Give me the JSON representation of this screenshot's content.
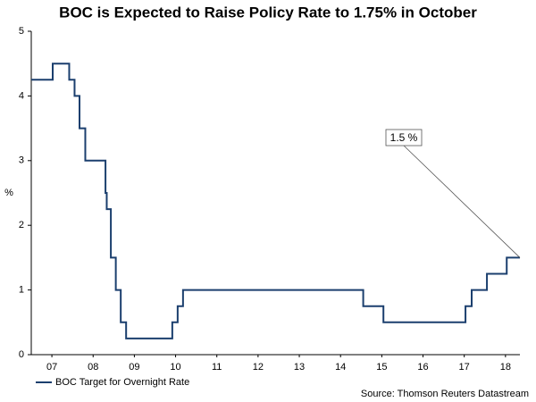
{
  "chart_data": {
    "type": "line",
    "title": "BOC is Expected to Raise Policy Rate to 1.75% in October",
    "y_label": "%",
    "source": "Source: Thomson Reuters Datastream",
    "annotation": "1.5 %",
    "x": [
      2007.0,
      2007.52,
      2007.52,
      2007.92,
      2007.92,
      2008.05,
      2008.05,
      2008.17,
      2008.17,
      2008.31,
      2008.31,
      2008.8,
      2008.8,
      2008.83,
      2008.83,
      2008.93,
      2008.93,
      2009.05,
      2009.05,
      2009.17,
      2009.17,
      2009.3,
      2009.3,
      2010.42,
      2010.42,
      2010.55,
      2010.55,
      2010.68,
      2010.68,
      2015.05,
      2015.05,
      2015.54,
      2015.54,
      2017.53,
      2017.53,
      2017.68,
      2017.68,
      2018.05,
      2018.05,
      2018.53,
      2018.53,
      2018.85
    ],
    "series": [
      {
        "name": "BOC Target for Overnight Rate",
        "color": "#1b3f6e",
        "values": [
          4.25,
          4.25,
          4.5,
          4.5,
          4.25,
          4.25,
          4.0,
          4.0,
          3.5,
          3.5,
          3.0,
          3.0,
          2.5,
          2.5,
          2.25,
          2.25,
          1.5,
          1.5,
          1.0,
          1.0,
          0.5,
          0.5,
          0.25,
          0.25,
          0.5,
          0.5,
          0.75,
          0.75,
          1.0,
          1.0,
          0.75,
          0.75,
          0.5,
          0.5,
          0.75,
          0.75,
          1.0,
          1.0,
          1.25,
          1.25,
          1.5,
          1.5
        ]
      }
    ],
    "xlim": [
      2007.0,
      2018.85
    ],
    "xticks": [
      {
        "value": 2007.5,
        "label": "07"
      },
      {
        "value": 2008.5,
        "label": "08"
      },
      {
        "value": 2009.5,
        "label": "09"
      },
      {
        "value": 2010.5,
        "label": "10"
      },
      {
        "value": 2011.5,
        "label": "11"
      },
      {
        "value": 2012.5,
        "label": "12"
      },
      {
        "value": 2013.5,
        "label": "13"
      },
      {
        "value": 2014.5,
        "label": "14"
      },
      {
        "value": 2015.5,
        "label": "15"
      },
      {
        "value": 2016.5,
        "label": "16"
      },
      {
        "value": 2017.5,
        "label": "17"
      },
      {
        "value": 2018.5,
        "label": "18"
      }
    ],
    "ylim": [
      0,
      5
    ],
    "yticks": [
      0,
      1,
      2,
      3,
      4,
      5
    ],
    "grid": false
  }
}
